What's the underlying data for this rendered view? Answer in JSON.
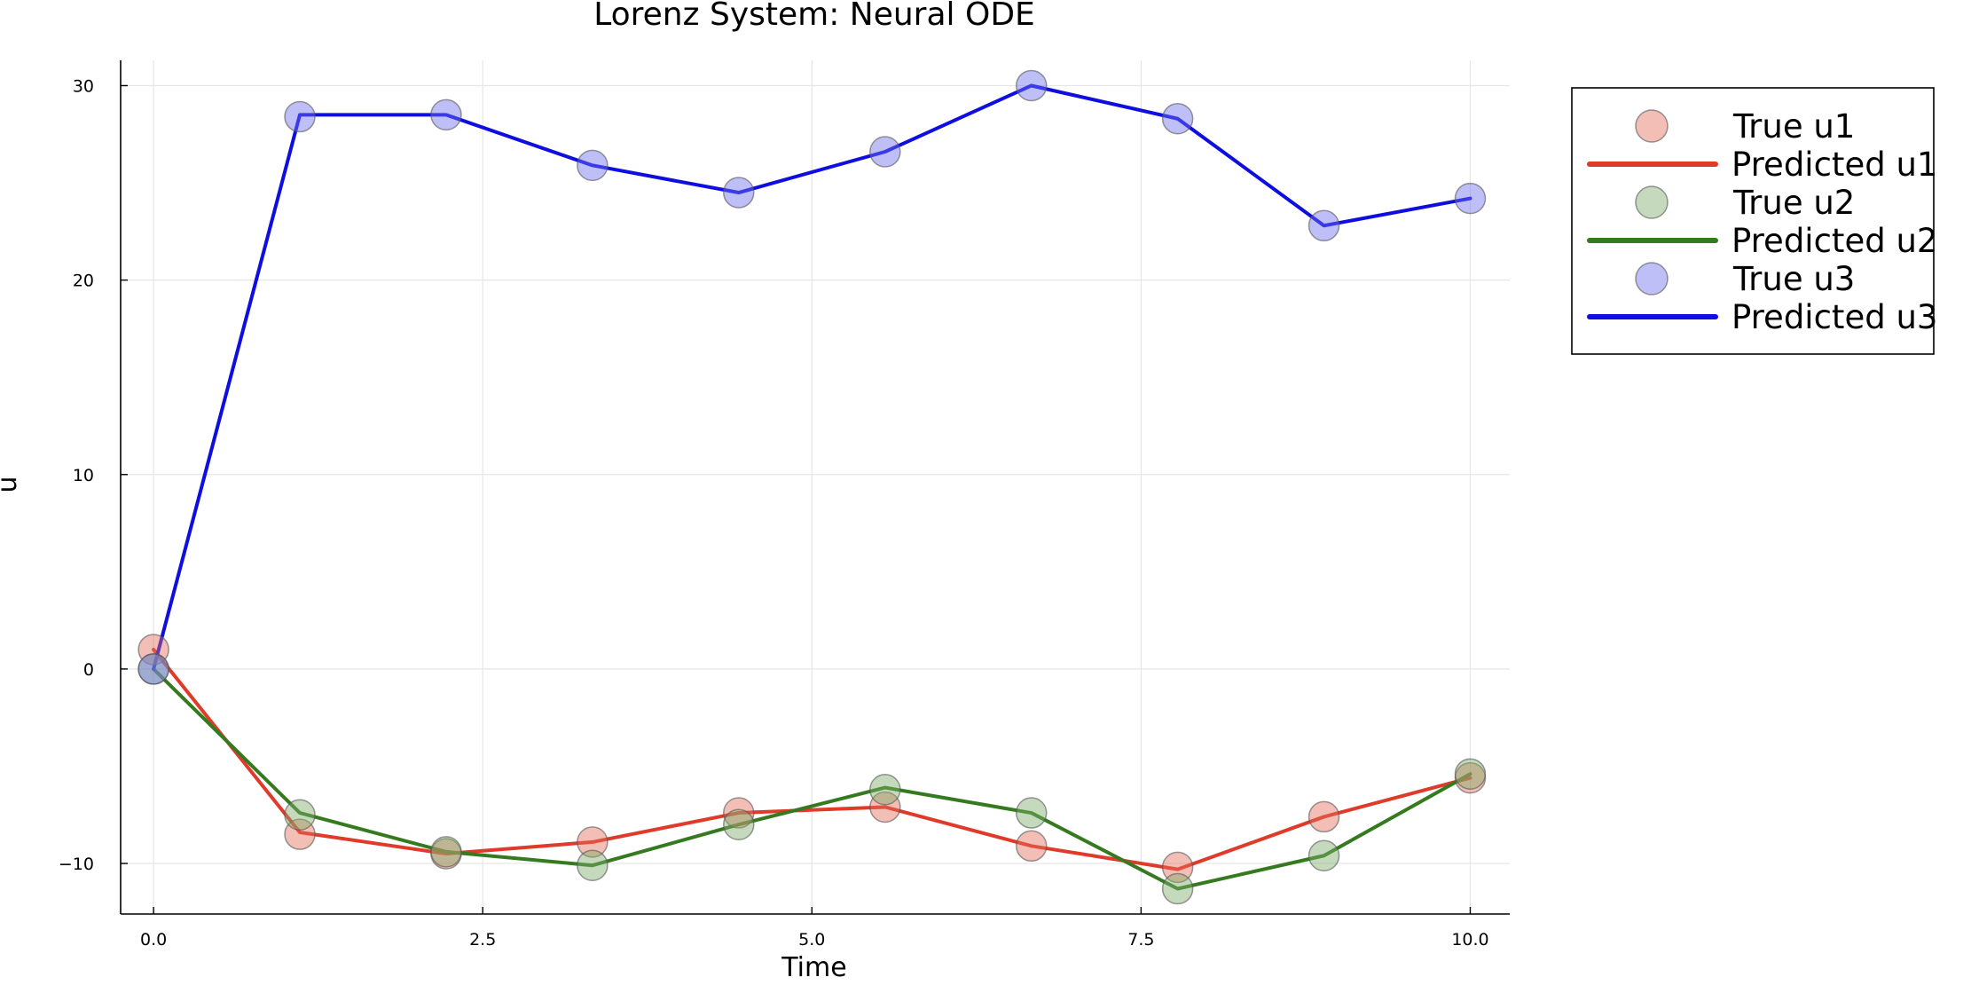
{
  "chart_data": {
    "type": "line",
    "title": "Lorenz System: Neural ODE",
    "xlabel": "Time",
    "ylabel": "u",
    "xlim": [
      -0.25,
      10.3
    ],
    "ylim": [
      -12.6,
      31.3
    ],
    "xticks": [
      0.0,
      2.5,
      5.0,
      7.5,
      10.0
    ],
    "xtick_labels": [
      "0.0",
      "2.5",
      "5.0",
      "7.5",
      "10.0"
    ],
    "yticks": [
      -10,
      0,
      10,
      20,
      30
    ],
    "ytick_labels": [
      "−10",
      "0",
      "10",
      "20",
      "30"
    ],
    "grid": true,
    "legend_position": "outer-top-right",
    "x": [
      0.0,
      1.111,
      2.222,
      3.333,
      4.444,
      5.556,
      6.667,
      7.778,
      8.889,
      10.0
    ],
    "series": [
      {
        "name": "True u1",
        "kind": "scatter",
        "color": "#e26f5a",
        "values": [
          1.0,
          -8.5,
          -9.5,
          -8.9,
          -7.4,
          -7.1,
          -9.1,
          -10.2,
          -7.6,
          -5.6
        ]
      },
      {
        "name": "Predicted u1",
        "kind": "line",
        "color": "#e03a2a",
        "values": [
          1.0,
          -8.4,
          -9.5,
          -8.9,
          -7.4,
          -7.1,
          -9.1,
          -10.3,
          -7.6,
          -5.6
        ]
      },
      {
        "name": "True u2",
        "kind": "scatter",
        "color": "#7fae6a",
        "values": [
          0.0,
          -7.5,
          -9.4,
          -10.1,
          -8.0,
          -6.2,
          -7.4,
          -11.3,
          -9.6,
          -5.4
        ]
      },
      {
        "name": "Predicted u2",
        "kind": "line",
        "color": "#357a1f",
        "values": [
          0.0,
          -7.4,
          -9.4,
          -10.1,
          -8.0,
          -6.1,
          -7.4,
          -11.3,
          -9.6,
          -5.4
        ]
      },
      {
        "name": "True u3",
        "kind": "scatter",
        "color": "#7272f0",
        "values": [
          0.0,
          28.4,
          28.5,
          25.9,
          24.5,
          26.6,
          30.0,
          28.3,
          22.8,
          24.2
        ]
      },
      {
        "name": "Predicted u3",
        "kind": "line",
        "color": "#0e0ee0",
        "values": [
          0.0,
          28.5,
          28.5,
          25.9,
          24.5,
          26.6,
          30.0,
          28.3,
          22.8,
          24.2
        ]
      }
    ]
  }
}
